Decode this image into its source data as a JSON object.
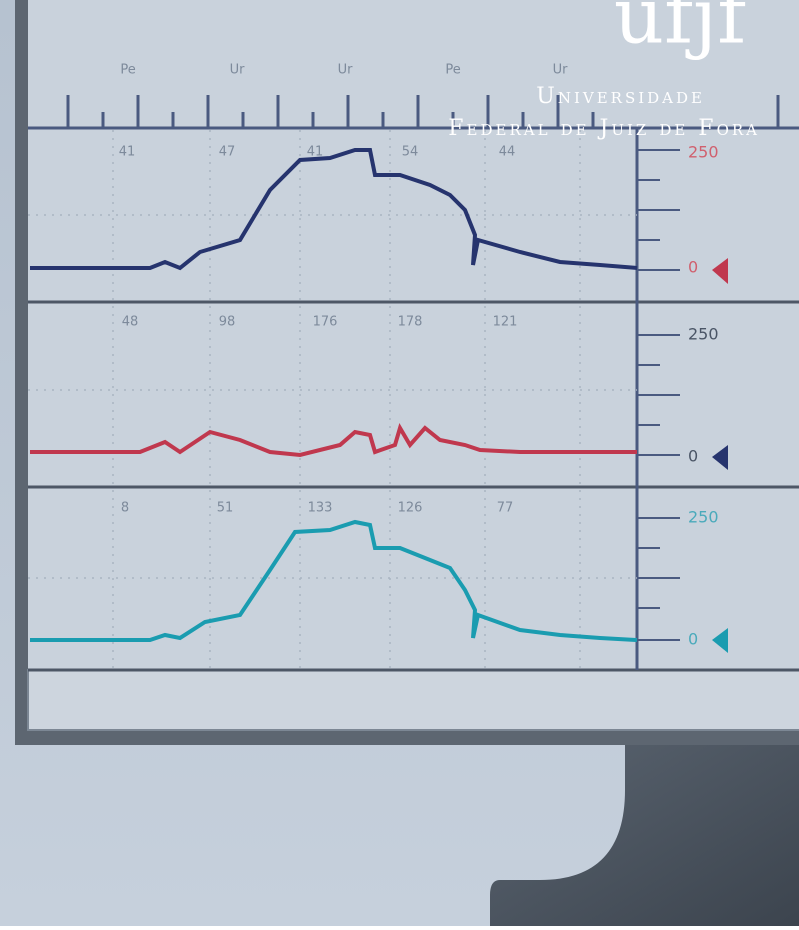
{
  "logo": {
    "mark": "ufjf",
    "line1": "Universidade",
    "line2": "Federal de Juiz de Fora"
  },
  "ruler": {
    "labels": [
      "Pe",
      "Ur",
      "Ur",
      "Pe",
      "Ur"
    ]
  },
  "panels": [
    {
      "labels": [
        "41",
        "47",
        "41",
        "54",
        "44"
      ],
      "scale_top": "250",
      "scale_bottom": "0"
    },
    {
      "labels": [
        "48",
        "98",
        "176",
        "178",
        "121"
      ],
      "scale_top": "250",
      "scale_bottom": "0"
    },
    {
      "labels": [
        "8",
        "51",
        "133",
        "126",
        "77"
      ],
      "scale_top": "250",
      "scale_bottom": "0"
    }
  ]
}
